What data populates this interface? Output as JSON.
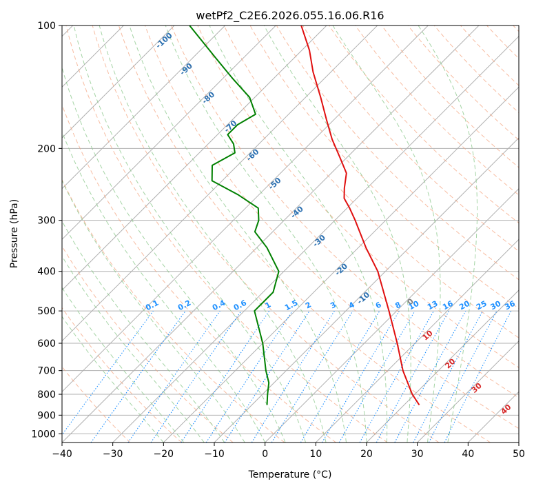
{
  "chart_data": {
    "type": "skew-t",
    "title": "wetPf2_C2E6.2026.055.16.06.R16",
    "xlabel": "Temperature (°C)",
    "ylabel": "Pressure (hPa)",
    "xlim": [
      -40,
      50
    ],
    "ylim": [
      1050,
      100
    ],
    "y_scale": "log",
    "grid": true,
    "x_ticks": [
      -40,
      -30,
      -20,
      -10,
      0,
      10,
      20,
      30,
      40,
      50
    ],
    "x_tick_labels": [
      "−40",
      "−30",
      "−20",
      "−10",
      "0",
      "10",
      "20",
      "30",
      "40",
      "50"
    ],
    "y_ticks": [
      100,
      200,
      300,
      400,
      500,
      600,
      700,
      800,
      900,
      1000
    ],
    "y_tick_labels": [
      "100",
      "200",
      "300",
      "400",
      "500",
      "600",
      "700",
      "800",
      "900",
      "1000"
    ],
    "series": [
      {
        "color": "#e01010",
        "points": [
          {
            "p": 850,
            "t": 23.0
          },
          {
            "p": 800,
            "t": 19.5
          },
          {
            "p": 700,
            "t": 13.0
          },
          {
            "p": 600,
            "t": 6.5
          },
          {
            "p": 500,
            "t": -1.5
          },
          {
            "p": 400,
            "t": -11.5
          },
          {
            "p": 350,
            "t": -18.5
          },
          {
            "p": 300,
            "t": -26.0
          },
          {
            "p": 280,
            "t": -29.5
          },
          {
            "p": 265,
            "t": -32.5
          },
          {
            "p": 250,
            "t": -34.5
          },
          {
            "p": 230,
            "t": -37.0
          },
          {
            "p": 210,
            "t": -41.5
          },
          {
            "p": 190,
            "t": -46.5
          },
          {
            "p": 170,
            "t": -51.5
          },
          {
            "p": 150,
            "t": -57.0
          },
          {
            "p": 130,
            "t": -63.5
          },
          {
            "p": 115,
            "t": -68.5
          },
          {
            "p": 100,
            "t": -75.0
          }
        ]
      },
      {
        "color": "#008000",
        "points": [
          {
            "p": 850,
            "t": -7.0
          },
          {
            "p": 800,
            "t": -9.0
          },
          {
            "p": 750,
            "t": -11.0
          },
          {
            "p": 700,
            "t": -14.0
          },
          {
            "p": 600,
            "t": -20.0
          },
          {
            "p": 500,
            "t": -28.0
          },
          {
            "p": 450,
            "t": -28.0
          },
          {
            "p": 400,
            "t": -31.0
          },
          {
            "p": 350,
            "t": -38.0
          },
          {
            "p": 320,
            "t": -43.5
          },
          {
            "p": 300,
            "t": -45.0
          },
          {
            "p": 280,
            "t": -47.5
          },
          {
            "p": 260,
            "t": -54.0
          },
          {
            "p": 240,
            "t": -62.0
          },
          {
            "p": 220,
            "t": -65.0
          },
          {
            "p": 205,
            "t": -63.0
          },
          {
            "p": 195,
            "t": -65.0
          },
          {
            "p": 185,
            "t": -68.0
          },
          {
            "p": 175,
            "t": -68.0
          },
          {
            "p": 165,
            "t": -66.5
          },
          {
            "p": 150,
            "t": -71.0
          },
          {
            "p": 135,
            "t": -78.0
          },
          {
            "p": 120,
            "t": -85.5
          },
          {
            "p": 100,
            "t": -97.0
          }
        ]
      }
    ],
    "isotherm_labels": [
      "-100",
      "-90",
      "-80",
      "-70",
      "-60",
      "-50",
      "-40",
      "-30",
      "-20",
      "-10",
      "0",
      "10",
      "20",
      "30",
      "40"
    ],
    "isotherm_values": [
      -100,
      -90,
      -80,
      -70,
      -60,
      -50,
      -40,
      -30,
      -20,
      -10,
      0,
      10,
      20,
      30,
      40
    ],
    "mixing_ratio_labels": [
      "0.1",
      "0.2",
      "0.4",
      "0.6",
      "1",
      "1.5",
      "2",
      "3",
      "4",
      "6",
      "8",
      "10",
      "13",
      "16",
      "20",
      "25",
      "30",
      "36"
    ],
    "mixing_ratio_values": [
      0.1,
      0.2,
      0.4,
      0.6,
      1,
      1.5,
      2,
      3,
      4,
      6,
      8,
      10,
      13,
      16,
      20,
      25,
      30,
      36
    ],
    "mixing_ratio_label_pressure": 500,
    "colors": {
      "cold_isotherm_label": "#2a6fb0",
      "zero_isotherm_label": "#808080",
      "warm_isotherm_label": "#d62728",
      "mixing_ratio": "#1e90ff",
      "dry_adiabat": "#f4a582",
      "moist_adiabat": "#8fc98f",
      "grid": "#b0b0b0"
    }
  }
}
